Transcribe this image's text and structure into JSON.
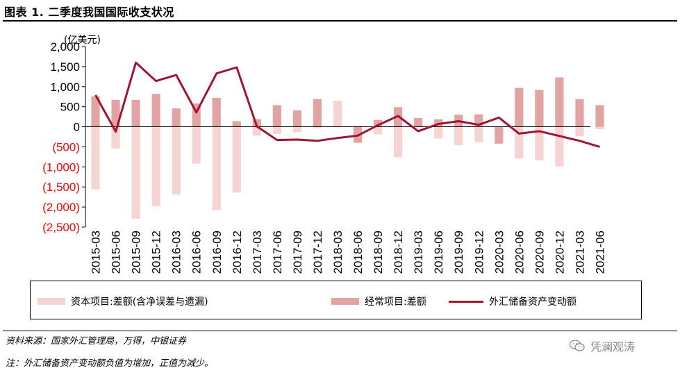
{
  "title": "图表 1. 二季度我国国际收支状况",
  "unit_label": "(亿美元)",
  "legend": {
    "capital": "资本项目:差额(含净误差与遗漏)",
    "current": "经常项目:差额",
    "reserve": "外汇储备资产变动额"
  },
  "source": "资料来源：国家外汇管理局，万得，中银证券",
  "note": "注：外汇储备资产变动额负值为增加，正值为减少。",
  "watermark": "凭澜观涛",
  "colors": {
    "capital": "#f6d4d4",
    "current": "#e2a3a3",
    "reserve": "#a01432",
    "negative_tick": "#ff0000"
  },
  "chart_data": {
    "type": "bar",
    "categories": [
      "2015-03",
      "2015-06",
      "2015-09",
      "2015-12",
      "2016-03",
      "2016-06",
      "2016-09",
      "2016-12",
      "2017-03",
      "2017-06",
      "2017-09",
      "2017-12",
      "2018-03",
      "2018-06",
      "2018-09",
      "2018-12",
      "2019-03",
      "2019-06",
      "2019-09",
      "2019-12",
      "2020-03",
      "2020-06",
      "2020-09",
      "2020-12",
      "2021-03",
      "2021-06"
    ],
    "ylim": [
      -2500,
      2000
    ],
    "yticks": [
      2000,
      1500,
      1000,
      500,
      0,
      -500,
      -1000,
      -1500,
      -2000,
      -2500
    ],
    "ytick_labels": [
      "2,000",
      "1,500",
      "1,000",
      "500",
      "0",
      "(500)",
      "(1,000)",
      "(1,500)",
      "(2,000)",
      "(2,500)"
    ],
    "series": [
      {
        "name": "资本项目:差额(含净误差与遗漏)",
        "type": "bar",
        "values": [
          -1560,
          -540,
          -2290,
          -1980,
          -1690,
          -920,
          -2080,
          -1640,
          -220,
          -180,
          -140,
          -40,
          650,
          30,
          -190,
          -760,
          -10,
          -290,
          -460,
          -380,
          -90,
          -790,
          -840,
          -990,
          -240,
          -60
        ]
      },
      {
        "name": "经常项目:差额",
        "type": "bar",
        "values": [
          760,
          670,
          670,
          820,
          460,
          580,
          720,
          140,
          190,
          540,
          410,
          690,
          -10,
          -400,
          170,
          490,
          220,
          190,
          300,
          310,
          -420,
          970,
          920,
          1230,
          690,
          540
        ]
      },
      {
        "name": "外汇储备资产变动额",
        "type": "line",
        "values": [
          790,
          -120,
          1600,
          1140,
          1290,
          360,
          1330,
          1480,
          10,
          -330,
          -320,
          -350,
          -280,
          -220,
          40,
          270,
          -110,
          70,
          140,
          50,
          230,
          -170,
          -110,
          -230,
          -350,
          -500
        ]
      }
    ],
    "grid": false,
    "legend_position": "bottom"
  }
}
